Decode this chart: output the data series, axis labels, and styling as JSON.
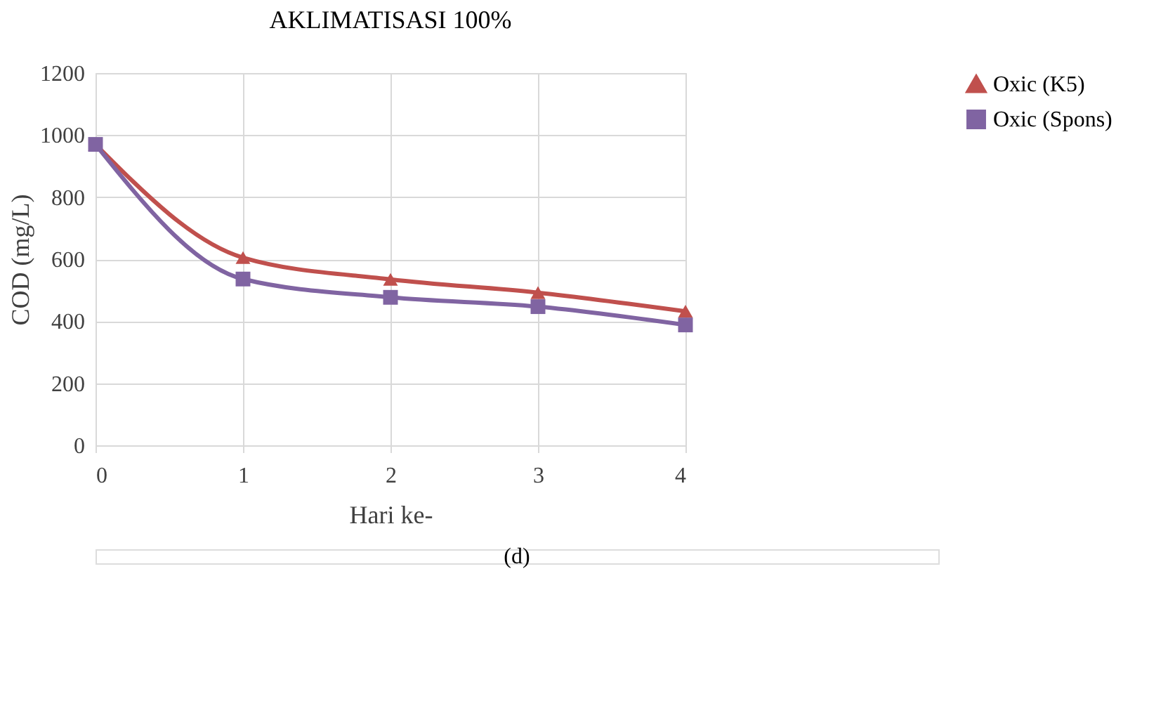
{
  "chart_data": {
    "type": "line",
    "title": "AKLIMATISASI 100%",
    "xlabel": "Hari ke-",
    "ylabel": "COD (mg/L)",
    "x": [
      0,
      1,
      2,
      3,
      4
    ],
    "series": [
      {
        "name": "Oxic (K5)",
        "color": "#c0504d",
        "marker": "triangle",
        "values": [
          970,
          605,
          535,
          492,
          432
        ]
      },
      {
        "name": "Oxic (Spons)",
        "color": "#8064a2",
        "marker": "square",
        "values": [
          970,
          536,
          477,
          447,
          388
        ]
      }
    ],
    "xlim": [
      0,
      4
    ],
    "xticks": [
      0,
      1,
      2,
      3,
      4
    ],
    "ylim": [
      0,
      1200
    ],
    "yticks": [
      0,
      200,
      400,
      600,
      800,
      1000,
      1200
    ],
    "grid": true,
    "legend": "right",
    "line_style": "solid",
    "annotations": [
      "(d)"
    ]
  }
}
